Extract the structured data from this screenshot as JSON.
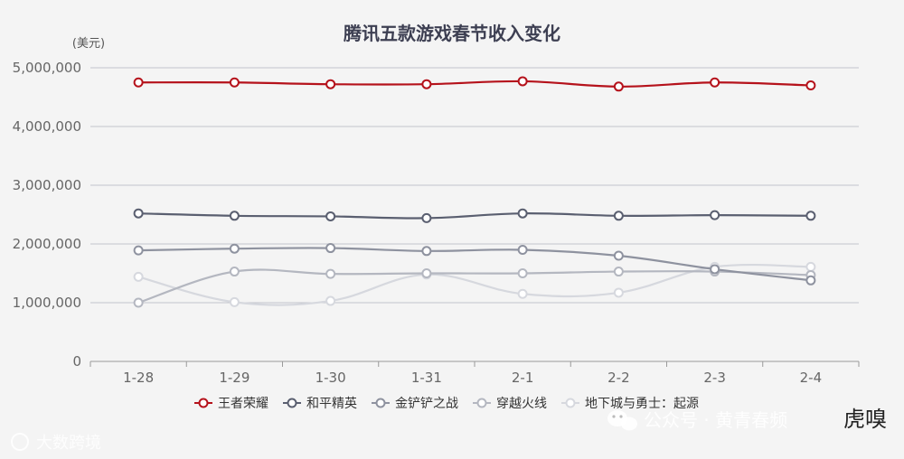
{
  "chart_data": {
    "type": "line",
    "title": "腾讯五款游戏春节收入变化",
    "ylabel": "(美元)",
    "xlabel": "",
    "categories": [
      "1-28",
      "1-29",
      "1-30",
      "1-31",
      "2-1",
      "2-2",
      "2-3",
      "2-4"
    ],
    "ylim": [
      0,
      5000000
    ],
    "yticks": [
      0,
      1000000,
      2000000,
      3000000,
      4000000,
      5000000
    ],
    "ytick_labels": [
      "0",
      "1,000,000",
      "2,000,000",
      "3,000,000",
      "4,000,000",
      "5,000,000"
    ],
    "grid": true,
    "legend_position": "bottom",
    "series": [
      {
        "name": "王者荣耀",
        "color": "#b5121b",
        "values": [
          4750000,
          4750000,
          4720000,
          4720000,
          4770000,
          4680000,
          4750000,
          4700000
        ]
      },
      {
        "name": "和平精英",
        "color": "#5a5f70",
        "values": [
          2520000,
          2480000,
          2470000,
          2440000,
          2520000,
          2480000,
          2490000,
          2480000
        ]
      },
      {
        "name": "金铲铲之战",
        "color": "#8e929f",
        "values": [
          1890000,
          1920000,
          1930000,
          1880000,
          1900000,
          1800000,
          1570000,
          1380000
        ]
      },
      {
        "name": "穿越火线",
        "color": "#b4b7c0",
        "values": [
          1000000,
          1530000,
          1490000,
          1500000,
          1500000,
          1530000,
          1530000,
          1470000
        ]
      },
      {
        "name": "地下城与勇士：起源",
        "color": "#d6d8de",
        "values": [
          1440000,
          1010000,
          1030000,
          1480000,
          1150000,
          1170000,
          1610000,
          1610000
        ]
      }
    ]
  },
  "watermarks": {
    "left": "大数跨境",
    "right": "公众号 · 黄青春频",
    "brand": "虎嗅"
  }
}
